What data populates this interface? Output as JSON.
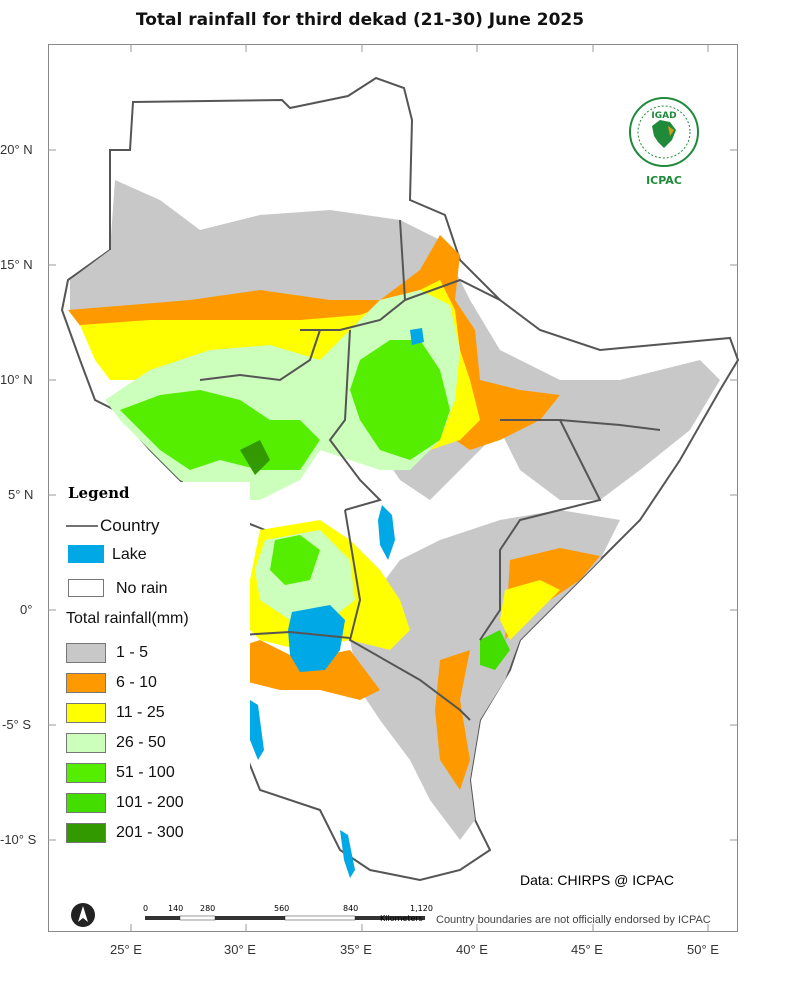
{
  "title": "Total rainfall  for third  dekad (21-30)  June 2025",
  "lat_labels": [
    "20° N",
    "15° N",
    "10° N",
    "5° N",
    "0°",
    "-5° S",
    "-10° S"
  ],
  "lon_labels": [
    "25° E",
    "30° E",
    "35° E",
    "40° E",
    "45° E",
    "50° E"
  ],
  "legend": {
    "title": "Legend",
    "country": "Country",
    "lake": "Lake",
    "no_rain": "No rain",
    "rain_title": "Total rainfall(mm)",
    "classes": [
      {
        "label": "1 - 5",
        "color": "#c8c8c8"
      },
      {
        "label": "6 - 10",
        "color": "#ff9900"
      },
      {
        "label": "11 - 25",
        "color": "#ffff00"
      },
      {
        "label": "26 - 50",
        "color": "#ccffbb"
      },
      {
        "label": "51 - 100",
        "color": "#55ee00"
      },
      {
        "label": "101 - 200",
        "color": "#44dd00"
      },
      {
        "label": "201 - 300",
        "color": "#339900"
      }
    ],
    "lake_color": "#00a8e6"
  },
  "logo": {
    "top_text": "IGAD",
    "bottom_text": "ICPAC"
  },
  "credit": "Data: CHIRPS @ ICPAC",
  "disclaimer": "Country boundaries are not officially endorsed by ICPAC",
  "scale": {
    "ticks": [
      "0",
      "140",
      "280",
      "560",
      "840",
      "1,120"
    ],
    "unit": "Kilometers"
  }
}
